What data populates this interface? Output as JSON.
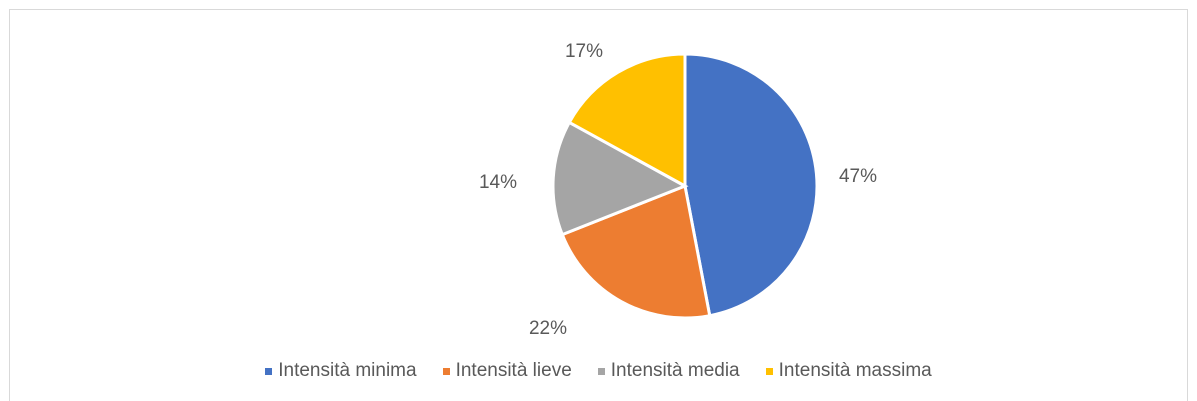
{
  "chart_data": {
    "type": "pie",
    "title": "",
    "categories": [
      "Intensità minima",
      "Intensità lieve",
      "Intensità media",
      "Intensità massima"
    ],
    "values": [
      47,
      22,
      14,
      17
    ],
    "data_labels": [
      "47%",
      "22%",
      "14%",
      "17%"
    ],
    "colors": [
      "#4472C4",
      "#ED7D31",
      "#A5A5A5",
      "#FFC000"
    ],
    "start_angle_deg": 0,
    "direction": "clockwise",
    "legend": "bottom"
  }
}
